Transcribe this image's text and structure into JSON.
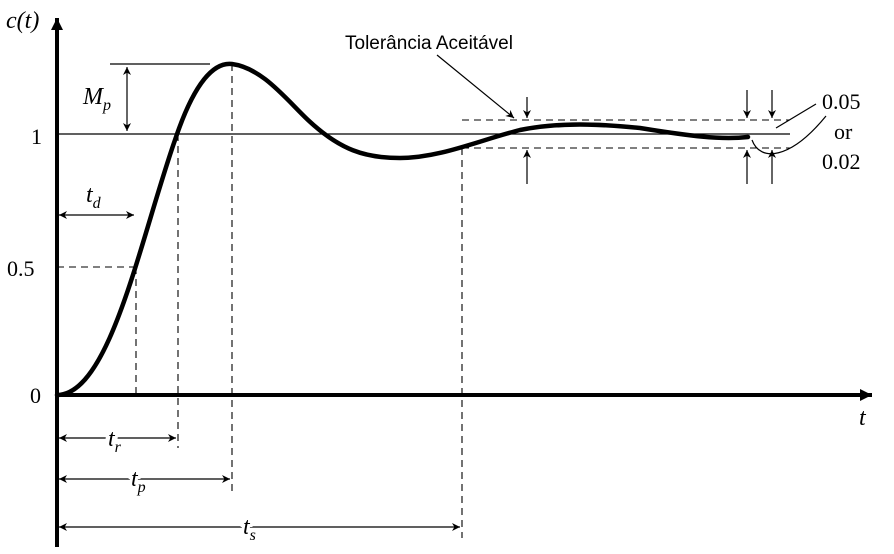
{
  "axes": {
    "y_label": "c(t)",
    "x_label": "t",
    "y_ticks": {
      "zero": "0",
      "half": "0.5",
      "one": "1"
    }
  },
  "annotations": {
    "tolerance": "Tolerância Aceitável",
    "band_upper": "0.05",
    "band_or": "or",
    "band_lower": "0.02"
  },
  "labels": {
    "Mp": {
      "main": "M",
      "sub": "p"
    },
    "td": {
      "main": "t",
      "sub": "d"
    },
    "tr": {
      "main": "t",
      "sub": "r"
    },
    "tp": {
      "main": "t",
      "sub": "p"
    },
    "ts": {
      "main": "t",
      "sub": "s"
    }
  }
}
